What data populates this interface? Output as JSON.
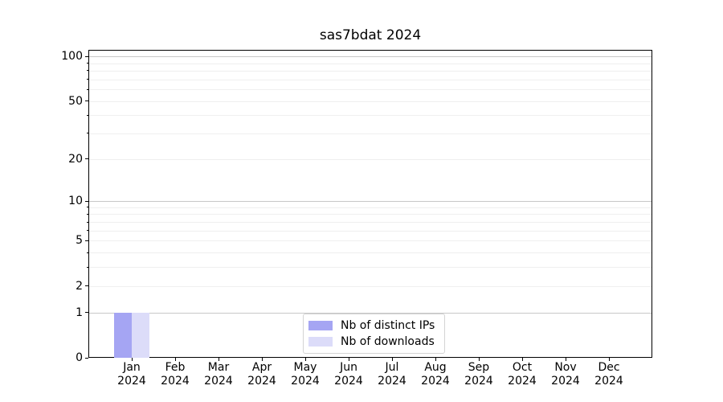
{
  "chart_data": {
    "type": "bar",
    "title": "sas7bdat 2024",
    "x": [
      {
        "month": "Jan",
        "year": "2024"
      },
      {
        "month": "Feb",
        "year": "2024"
      },
      {
        "month": "Mar",
        "year": "2024"
      },
      {
        "month": "Apr",
        "year": "2024"
      },
      {
        "month": "May",
        "year": "2024"
      },
      {
        "month": "Jun",
        "year": "2024"
      },
      {
        "month": "Jul",
        "year": "2024"
      },
      {
        "month": "Aug",
        "year": "2024"
      },
      {
        "month": "Sep",
        "year": "2024"
      },
      {
        "month": "Oct",
        "year": "2024"
      },
      {
        "month": "Nov",
        "year": "2024"
      },
      {
        "month": "Dec",
        "year": "2024"
      }
    ],
    "series": [
      {
        "name": "Nb of distinct IPs",
        "color": "#a5a5f3",
        "values": [
          1,
          0,
          0,
          0,
          0,
          0,
          0,
          0,
          0,
          0,
          0,
          0
        ]
      },
      {
        "name": "Nb of downloads",
        "color": "#dcdcf9",
        "values": [
          1,
          0,
          0,
          0,
          0,
          0,
          0,
          0,
          0,
          0,
          0,
          0
        ]
      }
    ],
    "y_scale": "log1p",
    "ylim": [
      0,
      110.5
    ],
    "y_ticks": [
      0,
      1,
      2,
      5,
      10,
      20,
      50,
      100
    ],
    "y_minor_ticks": [
      3,
      4,
      6,
      7,
      8,
      9,
      30,
      40,
      60,
      70,
      80,
      90
    ],
    "y_major_grid": [
      1,
      10,
      100
    ],
    "y_minor_grid": [
      2,
      3,
      4,
      5,
      6,
      7,
      8,
      9,
      20,
      30,
      40,
      50,
      60,
      70,
      80,
      90
    ],
    "grid": "horizontal",
    "legend_position": "lower center",
    "colors": {
      "spine": "#000000",
      "major_grid": "#c8c8c8",
      "minor_grid": "#efefef",
      "legend_border": "#d4d4d4"
    }
  }
}
